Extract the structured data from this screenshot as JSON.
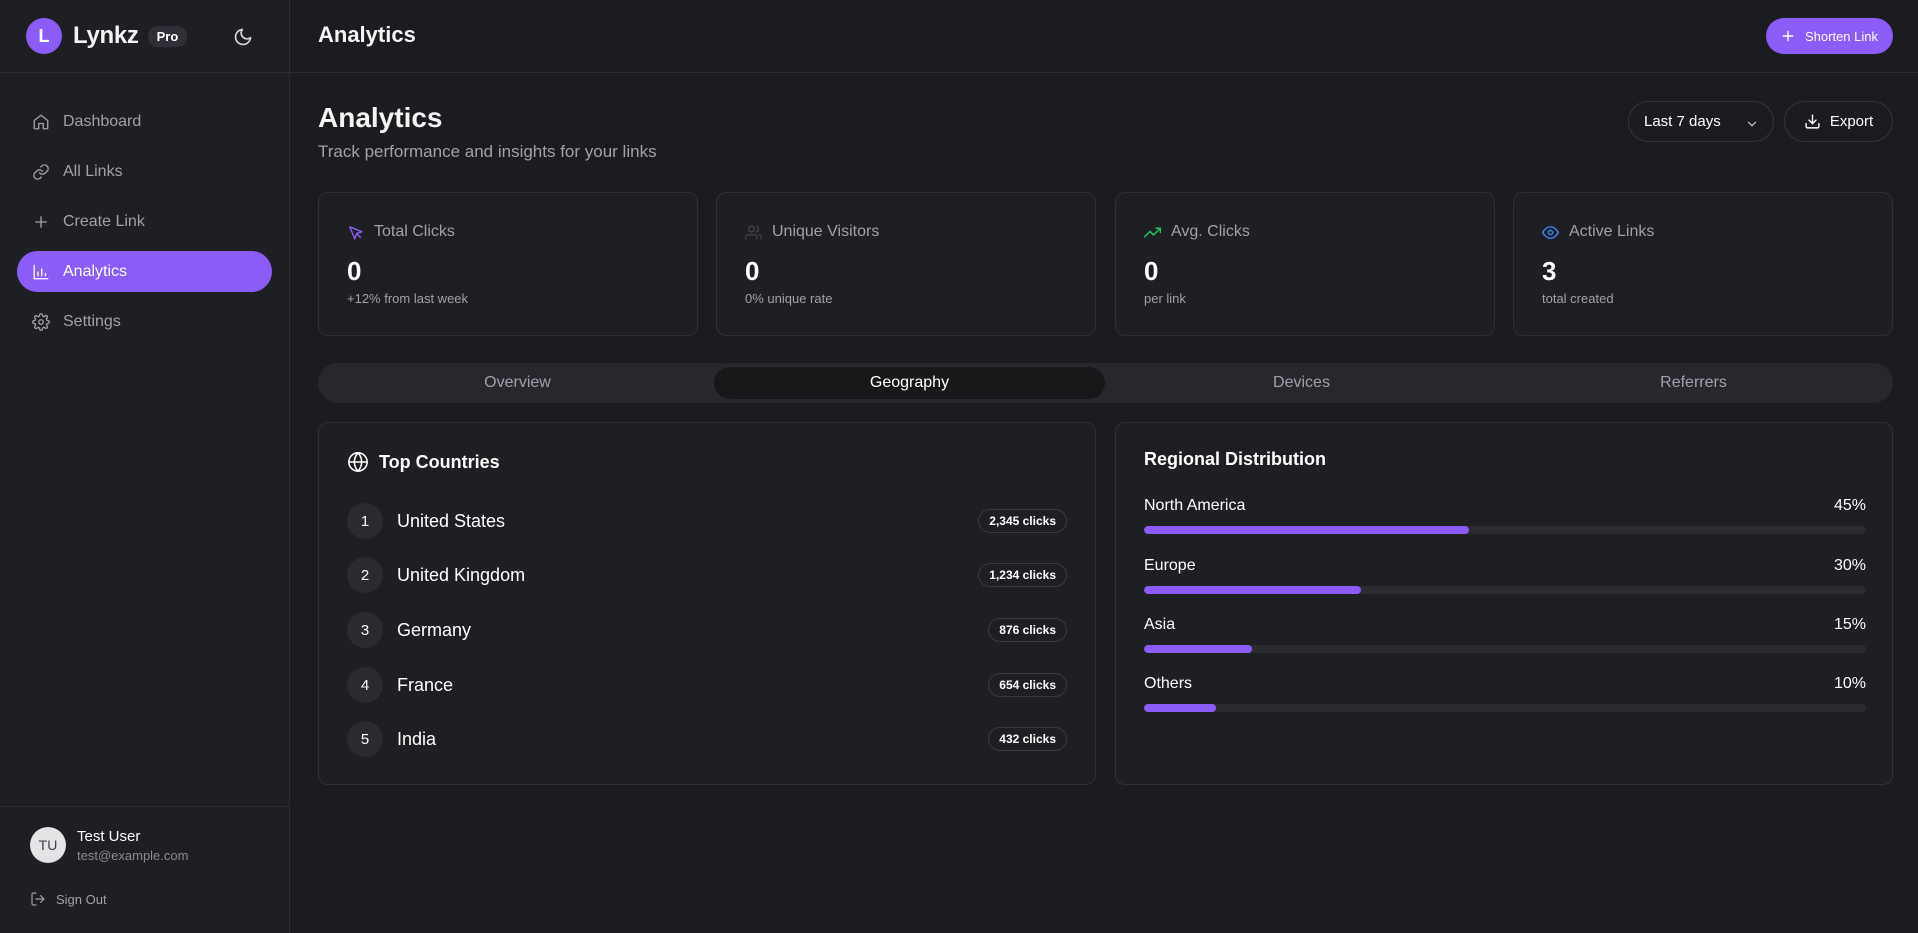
{
  "brand": {
    "initial": "L",
    "name": "Lynkz",
    "badge": "Pro"
  },
  "nav": [
    {
      "label": "Dashboard",
      "icon": "home-icon",
      "active": false
    },
    {
      "label": "All Links",
      "icon": "link-icon",
      "active": false
    },
    {
      "label": "Create Link",
      "icon": "plus-icon",
      "active": false
    },
    {
      "label": "Analytics",
      "icon": "bar-chart-icon",
      "active": true
    },
    {
      "label": "Settings",
      "icon": "gear-icon",
      "active": false
    }
  ],
  "user": {
    "initials": "TU",
    "name": "Test User",
    "email": "test@example.com",
    "signout": "Sign Out"
  },
  "header": {
    "title": "Analytics",
    "shorten_label": "Shorten Link"
  },
  "page": {
    "title": "Analytics",
    "subtitle": "Track performance and insights for your links",
    "range": "Last 7 days",
    "export_label": "Export"
  },
  "stats": [
    {
      "label": "Total Clicks",
      "value": "0",
      "note": "+12% from last week",
      "icon": "cursor-icon",
      "color": "#8b5cf6"
    },
    {
      "label": "Unique Visitors",
      "value": "0",
      "note": "0% unique rate",
      "icon": "users-icon",
      "color": "#3f3f46"
    },
    {
      "label": "Avg. Clicks",
      "value": "0",
      "note": "per link",
      "icon": "trending-up-icon",
      "color": "#22c55e"
    },
    {
      "label": "Active Links",
      "value": "3",
      "note": "total created",
      "icon": "eye-icon",
      "color": "#3b82f6"
    }
  ],
  "tabs": [
    {
      "label": "Overview",
      "active": false
    },
    {
      "label": "Geography",
      "active": true
    },
    {
      "label": "Devices",
      "active": false
    },
    {
      "label": "Referrers",
      "active": false
    }
  ],
  "countries": {
    "title": "Top Countries",
    "rows": [
      {
        "rank": "1",
        "name": "United States",
        "clicks": "2,345 clicks"
      },
      {
        "rank": "2",
        "name": "United Kingdom",
        "clicks": "1,234 clicks"
      },
      {
        "rank": "3",
        "name": "Germany",
        "clicks": "876 clicks"
      },
      {
        "rank": "4",
        "name": "France",
        "clicks": "654 clicks"
      },
      {
        "rank": "5",
        "name": "India",
        "clicks": "432 clicks"
      }
    ]
  },
  "regions": {
    "title": "Regional Distribution",
    "rows": [
      {
        "name": "North America",
        "percent_label": "45%",
        "percent": 45
      },
      {
        "name": "Europe",
        "percent_label": "30%",
        "percent": 30
      },
      {
        "name": "Asia",
        "percent_label": "15%",
        "percent": 15
      },
      {
        "name": "Others",
        "percent_label": "10%",
        "percent": 10
      }
    ]
  },
  "colors": {
    "accent": "#8b5cf6",
    "background": "#1b1c20",
    "surface": "#1e1f23"
  }
}
